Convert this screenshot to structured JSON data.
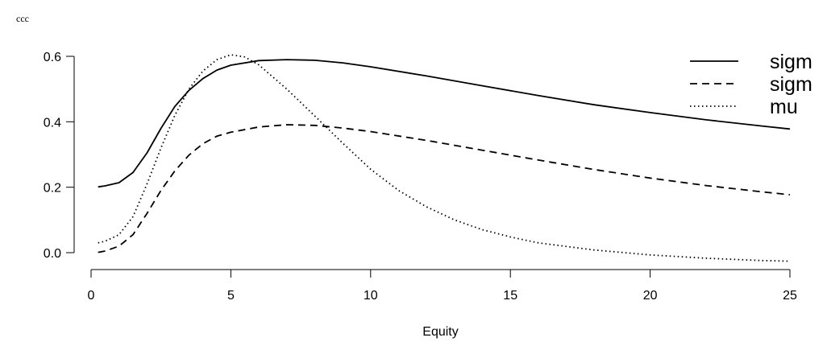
{
  "chart_data": {
    "type": "line",
    "title": "ccc",
    "xlabel": "Equity",
    "ylabel": "",
    "xlim": [
      0,
      25
    ],
    "ylim": [
      -0.03,
      0.63
    ],
    "xticks": [
      0,
      5,
      10,
      15,
      20,
      25
    ],
    "xtick_labels": [
      "0",
      "5",
      "10",
      "15",
      "20",
      "25"
    ],
    "yticks": [
      0.0,
      0.2,
      0.4,
      0.6
    ],
    "ytick_labels": [
      "0.0",
      "0.2",
      "0.4",
      "0.6"
    ],
    "grid": false,
    "legend_position": "top-right",
    "series": [
      {
        "name": "sigm",
        "line_style": "solid",
        "color": "#000000",
        "x": [
          0.25,
          0.5,
          1,
          1.5,
          2,
          2.5,
          3,
          3.5,
          4,
          4.5,
          5,
          6,
          7,
          8,
          9,
          10,
          12,
          14,
          16,
          18,
          20,
          22,
          24,
          25
        ],
        "y": [
          0.201,
          0.204,
          0.214,
          0.245,
          0.305,
          0.38,
          0.447,
          0.496,
          0.532,
          0.558,
          0.573,
          0.587,
          0.59,
          0.588,
          0.58,
          0.568,
          0.54,
          0.51,
          0.48,
          0.452,
          0.428,
          0.406,
          0.387,
          0.378
        ]
      },
      {
        "name": "sigm",
        "line_style": "dashed",
        "color": "#000000",
        "x": [
          0.25,
          0.5,
          1,
          1.5,
          2,
          2.5,
          3,
          3.5,
          4,
          4.5,
          5,
          6,
          7,
          8,
          9,
          10,
          12,
          14,
          16,
          18,
          20,
          22,
          24,
          25
        ],
        "y": [
          0.001,
          0.005,
          0.02,
          0.055,
          0.12,
          0.19,
          0.25,
          0.298,
          0.333,
          0.356,
          0.368,
          0.384,
          0.391,
          0.389,
          0.381,
          0.37,
          0.343,
          0.313,
          0.283,
          0.254,
          0.228,
          0.205,
          0.186,
          0.177
        ]
      },
      {
        "name": "mu",
        "line_style": "dotted",
        "color": "#000000",
        "x": [
          0.25,
          0.5,
          1,
          1.5,
          2,
          2.5,
          3,
          3.5,
          4,
          4.5,
          5,
          5.5,
          6,
          7,
          8,
          9,
          10,
          11,
          12,
          13,
          14,
          15,
          16,
          18,
          20,
          22,
          24,
          25
        ],
        "y": [
          0.03,
          0.035,
          0.055,
          0.11,
          0.21,
          0.32,
          0.42,
          0.5,
          0.555,
          0.59,
          0.605,
          0.598,
          0.574,
          0.5,
          0.418,
          0.335,
          0.255,
          0.19,
          0.14,
          0.1,
          0.07,
          0.048,
          0.03,
          0.008,
          -0.007,
          -0.017,
          -0.024,
          -0.026
        ]
      }
    ]
  }
}
